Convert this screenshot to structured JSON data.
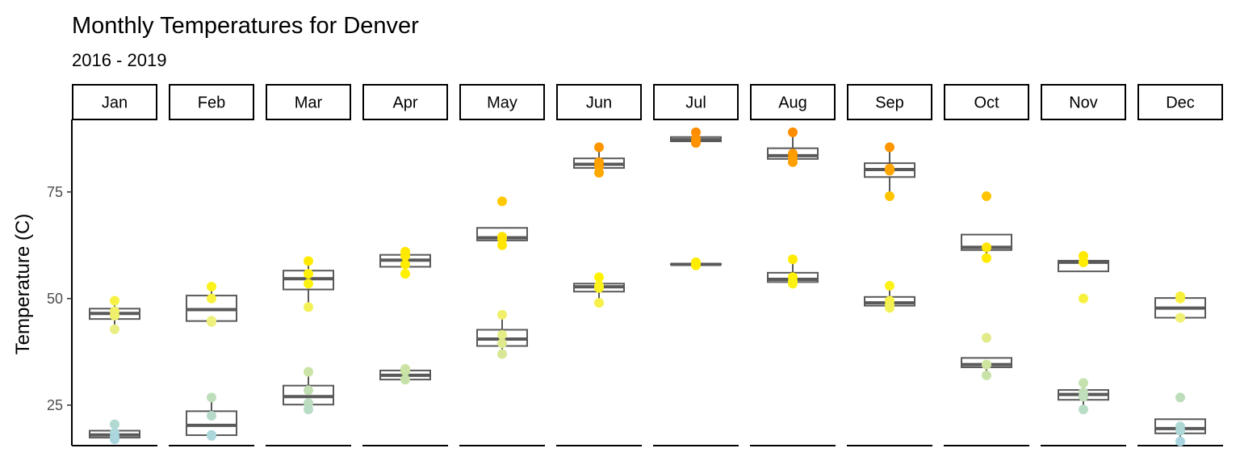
{
  "chart_data": {
    "type": "boxplot",
    "title": "Monthly Temperatures for Denver",
    "subtitle": "2016 - 2019",
    "ylabel": "Temperature (C)",
    "xlabel": "",
    "ylim": [
      15.5,
      92
    ],
    "yticks": [
      25,
      50,
      75
    ],
    "grid": false,
    "legend": "none",
    "facets": [
      "Jan",
      "Feb",
      "Mar",
      "Apr",
      "May",
      "Jun",
      "Jul",
      "Aug",
      "Sep",
      "Oct",
      "Nov",
      "Dec"
    ],
    "series": [
      {
        "values": {
          "Jan": [
            49.5,
            47.0,
            46.0,
            42.8
          ],
          "Feb": [
            52.8,
            50.0,
            44.5,
            44.8
          ],
          "Mar": [
            58.8,
            55.8,
            53.5,
            48.0
          ],
          "Apr": [
            61.0,
            60.0,
            58.0,
            55.8
          ],
          "May": [
            72.8,
            64.5,
            64.0,
            62.5
          ],
          "Jun": [
            85.5,
            82.0,
            81.0,
            79.5
          ],
          "Jul": [
            89.0,
            87.5,
            87.0,
            86.5
          ],
          "Aug": [
            89.0,
            84.0,
            83.0,
            82.0
          ],
          "Sep": [
            85.5,
            80.5,
            80.0,
            74.0
          ],
          "Oct": [
            74.0,
            62.0,
            62.0,
            59.5
          ],
          "Nov": [
            60.0,
            58.5,
            58.5,
            50.0
          ],
          "Dec": [
            50.5,
            50.0,
            45.5,
            45.5
          ]
        }
      },
      {
        "values": {
          "Jan": [
            20.5,
            18.5,
            17.5,
            17.0
          ],
          "Feb": [
            26.8,
            22.5,
            18.0,
            17.8
          ],
          "Mar": [
            32.8,
            28.5,
            25.5,
            24.0
          ],
          "Apr": [
            33.5,
            33.0,
            31.0,
            31.0
          ],
          "May": [
            46.2,
            41.5,
            39.5,
            37.0
          ],
          "Jun": [
            55.0,
            53.0,
            52.5,
            49.0
          ],
          "Jul": [
            58.5,
            58.0,
            58.0,
            57.8
          ],
          "Aug": [
            59.2,
            55.0,
            54.0,
            53.5
          ],
          "Sep": [
            53.0,
            49.5,
            48.5,
            47.8
          ],
          "Oct": [
            40.8,
            34.5,
            34.5,
            32.0
          ],
          "Nov": [
            30.2,
            28.0,
            27.0,
            24.0
          ],
          "Dec": [
            26.8,
            20.0,
            19.0,
            16.5
          ]
        }
      }
    ],
    "color_scale": {
      "stops": [
        [
          16,
          "#a8d5e2"
        ],
        [
          33,
          "#cbe3a4"
        ],
        [
          45,
          "#eef07a"
        ],
        [
          55,
          "#fff200"
        ],
        [
          70,
          "#ffd700"
        ],
        [
          80,
          "#ffa500"
        ],
        [
          89,
          "#ff8c00"
        ]
      ]
    },
    "box_color": "#595959"
  }
}
